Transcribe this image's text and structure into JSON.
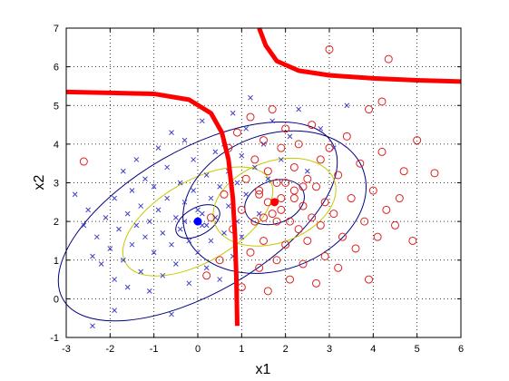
{
  "chart_data": {
    "type": "scatter",
    "title": "",
    "xlabel": "x1",
    "ylabel": "x2",
    "xlim": [
      -3,
      6
    ],
    "ylim": [
      -1,
      7
    ],
    "x_ticks": [
      -3,
      -2,
      -1,
      0,
      1,
      2,
      3,
      4,
      5,
      6
    ],
    "y_ticks": [
      -1,
      0,
      1,
      2,
      3,
      4,
      5,
      6,
      7
    ],
    "grid": true,
    "grid_style": "dotted",
    "legend": "none",
    "colors": {
      "class1": "#4040c8",
      "class2": "#e02020",
      "contour_outer": "#000080",
      "contour_inner": "#c8c800",
      "boundary": "#ff0000",
      "mean1": "#0000ff",
      "mean2": "#ff0000"
    },
    "class_means": [
      {
        "class": "class1",
        "marker": "x",
        "x": 0.0,
        "y": 2.0
      },
      {
        "class": "class2",
        "marker": "o",
        "x": 1.75,
        "y": 2.5
      }
    ],
    "class1_points": [
      [
        -2.8,
        2.7
      ],
      [
        -2.6,
        1.9
      ],
      [
        -2.5,
        2.3
      ],
      [
        -2.4,
        1.1
      ],
      [
        -2.3,
        1.6
      ],
      [
        -2.2,
        0.9
      ],
      [
        -2.1,
        2.1
      ],
      [
        -2.0,
        1.3
      ],
      [
        -1.9,
        2.6
      ],
      [
        -1.9,
        0.5
      ],
      [
        -1.8,
        1.8
      ],
      [
        -1.7,
        3.3
      ],
      [
        -1.7,
        1.0
      ],
      [
        -1.6,
        2.2
      ],
      [
        -1.6,
        0.3
      ],
      [
        -1.5,
        2.8
      ],
      [
        -1.5,
        1.4
      ],
      [
        -1.4,
        3.6
      ],
      [
        -1.4,
        1.9
      ],
      [
        -1.3,
        0.7
      ],
      [
        -1.3,
        2.4
      ],
      [
        -1.2,
        3.1
      ],
      [
        -1.2,
        1.6
      ],
      [
        -1.1,
        0.2
      ],
      [
        -1.1,
        2.0
      ],
      [
        -1.0,
        2.9
      ],
      [
        -1.0,
        1.2
      ],
      [
        -0.9,
        3.9
      ],
      [
        -0.9,
        2.3
      ],
      [
        -0.8,
        1.7
      ],
      [
        -0.8,
        0.6
      ],
      [
        -0.7,
        3.4
      ],
      [
        -0.7,
        2.6
      ],
      [
        -0.6,
        1.4
      ],
      [
        -0.6,
        4.3
      ],
      [
        -0.5,
        2.1
      ],
      [
        -0.5,
        0.9
      ],
      [
        -0.4,
        3.0
      ],
      [
        -0.4,
        1.8
      ],
      [
        -0.3,
        2.5
      ],
      [
        -0.3,
        4.1
      ],
      [
        -0.2,
        1.5
      ],
      [
        -0.2,
        0.4
      ],
      [
        -0.1,
        2.8
      ],
      [
        -0.1,
        3.6
      ],
      [
        0.0,
        1.2
      ],
      [
        0.0,
        2.3
      ],
      [
        0.1,
        4.6
      ],
      [
        0.1,
        1.9
      ],
      [
        0.2,
        3.2
      ],
      [
        0.2,
        0.8
      ],
      [
        0.3,
        2.6
      ],
      [
        0.3,
        1.5
      ],
      [
        0.4,
        3.8
      ],
      [
        0.4,
        2.1
      ],
      [
        0.5,
        0.5
      ],
      [
        0.5,
        2.9
      ],
      [
        0.6,
        1.7
      ],
      [
        0.6,
        4.0
      ],
      [
        0.7,
        2.4
      ],
      [
        0.7,
        3.3
      ],
      [
        0.8,
        1.1
      ],
      [
        0.8,
        4.8
      ],
      [
        0.9,
        2.0
      ],
      [
        0.9,
        3.0
      ],
      [
        1.0,
        3.7
      ],
      [
        1.0,
        1.6
      ],
      [
        1.1,
        4.4
      ],
      [
        1.1,
        2.7
      ],
      [
        1.2,
        5.2
      ],
      [
        1.3,
        3.4
      ],
      [
        1.4,
        2.2
      ],
      [
        1.5,
        4.0
      ],
      [
        1.6,
        3.1
      ],
      [
        1.7,
        4.6
      ],
      [
        1.9,
        3.6
      ],
      [
        2.1,
        4.2
      ],
      [
        2.3,
        4.9
      ],
      [
        2.5,
        3.3
      ],
      [
        2.8,
        4.4
      ],
      [
        3.1,
        3.9
      ],
      [
        3.4,
        5.0
      ],
      [
        0.2,
        1.9
      ],
      [
        -0.3,
        2.0
      ],
      [
        0.1,
        2.2
      ],
      [
        -0.6,
        -0.4
      ],
      [
        -1.9,
        -0.3
      ],
      [
        -2.4,
        -0.7
      ]
    ],
    "class2_points": [
      [
        -2.6,
        3.55
      ],
      [
        0.3,
        2.1
      ],
      [
        0.2,
        0.6
      ],
      [
        0.5,
        1.0
      ],
      [
        0.6,
        2.7
      ],
      [
        0.7,
        3.9
      ],
      [
        0.8,
        1.8
      ],
      [
        0.9,
        4.3
      ],
      [
        1.0,
        2.3
      ],
      [
        1.0,
        0.3
      ],
      [
        1.1,
        3.1
      ],
      [
        1.2,
        1.2
      ],
      [
        1.2,
        4.7
      ],
      [
        1.3,
        2.0
      ],
      [
        1.3,
        3.6
      ],
      [
        1.4,
        0.8
      ],
      [
        1.4,
        2.8
      ],
      [
        1.5,
        4.1
      ],
      [
        1.5,
        1.5
      ],
      [
        1.6,
        3.3
      ],
      [
        1.6,
        0.2
      ],
      [
        1.7,
        2.2
      ],
      [
        1.7,
        4.9
      ],
      [
        1.8,
        1.0
      ],
      [
        1.8,
        3.0
      ],
      [
        1.9,
        2.6
      ],
      [
        1.9,
        3.9
      ],
      [
        2.0,
        1.4
      ],
      [
        2.0,
        4.4
      ],
      [
        2.1,
        2.0
      ],
      [
        2.1,
        0.5
      ],
      [
        2.2,
        3.4
      ],
      [
        2.2,
        2.8
      ],
      [
        2.3,
        1.8
      ],
      [
        2.3,
        4.0
      ],
      [
        2.4,
        2.4
      ],
      [
        2.4,
        0.9
      ],
      [
        2.5,
        3.1
      ],
      [
        2.5,
        1.5
      ],
      [
        2.6,
        2.1
      ],
      [
        2.6,
        4.5
      ],
      [
        2.7,
        2.9
      ],
      [
        2.7,
        0.4
      ],
      [
        2.8,
        3.6
      ],
      [
        2.8,
        1.9
      ],
      [
        2.9,
        2.5
      ],
      [
        2.9,
        1.1
      ],
      [
        3.0,
        3.9
      ],
      [
        3.0,
        6.45
      ],
      [
        3.1,
        2.2
      ],
      [
        3.2,
        3.2
      ],
      [
        3.2,
        0.8
      ],
      [
        3.3,
        1.6
      ],
      [
        3.4,
        4.2
      ],
      [
        3.5,
        2.6
      ],
      [
        3.6,
        1.3
      ],
      [
        3.7,
        3.5
      ],
      [
        3.8,
        2.0
      ],
      [
        3.9,
        4.9
      ],
      [
        3.9,
        0.5
      ],
      [
        4.0,
        2.8
      ],
      [
        4.1,
        1.6
      ],
      [
        4.2,
        3.8
      ],
      [
        4.2,
        5.1
      ],
      [
        4.3,
        2.3
      ],
      [
        4.35,
        6.2
      ],
      [
        4.5,
        1.9
      ],
      [
        4.6,
        2.6
      ],
      [
        4.7,
        3.3
      ],
      [
        4.9,
        1.5
      ],
      [
        5.0,
        4.1
      ],
      [
        5.4,
        3.25
      ],
      [
        1.6,
        2.5
      ],
      [
        1.9,
        2.3
      ],
      [
        2.2,
        2.6
      ],
      [
        1.4,
        2.7
      ],
      [
        2.0,
        3.0
      ],
      [
        1.8,
        2.0
      ],
      [
        2.4,
        2.9
      ],
      [
        1.5,
        2.1
      ]
    ],
    "boundary_curves": [
      {
        "name": "",
        "points": [
          [
            -3,
            5.35
          ],
          [
            -1.0,
            5.3
          ],
          [
            -0.2,
            5.15
          ],
          [
            0.3,
            4.8
          ],
          [
            0.55,
            4.3
          ],
          [
            0.7,
            3.6
          ],
          [
            0.8,
            2.6
          ],
          [
            0.85,
            1.6
          ],
          [
            0.88,
            0.5
          ],
          [
            0.9,
            -0.7
          ]
        ]
      },
      {
        "name": "",
        "points": [
          [
            1.4,
            7.0
          ],
          [
            1.55,
            6.55
          ],
          [
            1.8,
            6.15
          ],
          [
            2.3,
            5.9
          ],
          [
            3.0,
            5.78
          ],
          [
            4.0,
            5.7
          ],
          [
            5.0,
            5.65
          ],
          [
            6.0,
            5.62
          ]
        ]
      }
    ],
    "contour_ellipses": [
      {
        "cx": 0.0,
        "cy": 2.0,
        "rx": 0.55,
        "ry": 0.35,
        "rot": -30,
        "color": "contour_outer"
      },
      {
        "cx": 0.0,
        "cy": 2.0,
        "rx": 1.9,
        "ry": 1.05,
        "rot": -30,
        "color": "contour_inner"
      },
      {
        "cx": 0.0,
        "cy": 2.0,
        "rx": 3.55,
        "ry": 1.85,
        "rot": -30,
        "color": "contour_outer"
      },
      {
        "cx": 1.75,
        "cy": 2.5,
        "rx": 0.7,
        "ry": 0.55,
        "rot": -20,
        "color": "contour_outer"
      },
      {
        "cx": 1.75,
        "cy": 2.5,
        "rx": 1.45,
        "ry": 1.05,
        "rot": -20,
        "color": "contour_inner"
      },
      {
        "cx": 1.75,
        "cy": 2.5,
        "rx": 2.15,
        "ry": 1.75,
        "rot": -20,
        "color": "contour_outer"
      }
    ]
  }
}
